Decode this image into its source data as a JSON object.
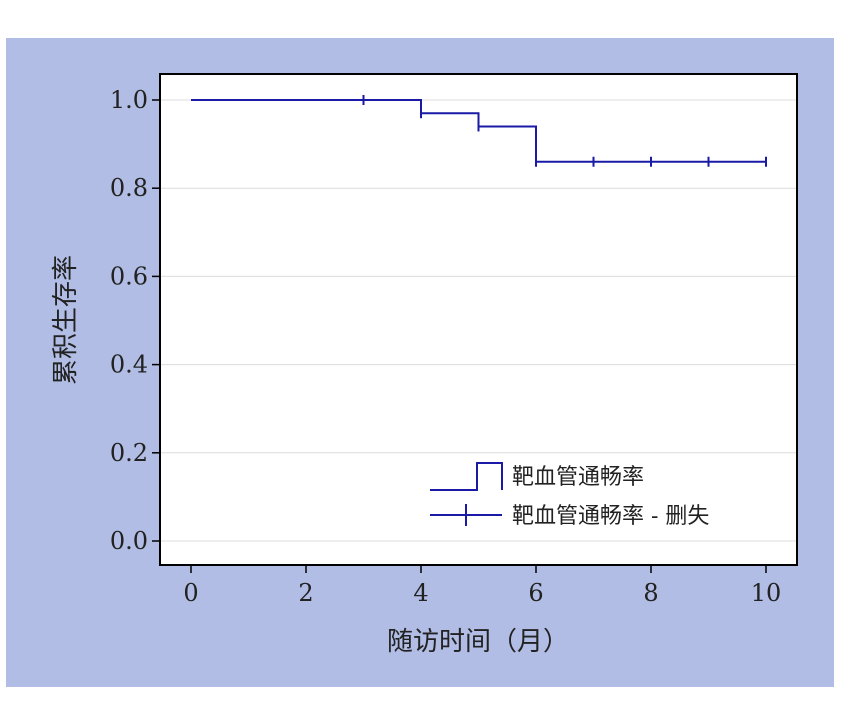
{
  "chart_data": {
    "type": "line",
    "title": "",
    "xlabel": "随访时间（月）",
    "ylabel": "累积生存率",
    "xlim": [
      0,
      10
    ],
    "ylim": [
      0,
      1.0
    ],
    "x_ticks": [
      "0",
      "2",
      "4",
      "6",
      "8",
      "10"
    ],
    "y_ticks": [
      "0.0",
      "0.2",
      "0.4",
      "0.6",
      "0.8",
      "1.0"
    ],
    "grid": "horizontal",
    "legend_position": "bottom-right",
    "series": [
      {
        "name": "靶血管通畅率",
        "style": "step",
        "color": "#1a1aa6",
        "x": [
          0,
          4,
          5,
          6,
          10
        ],
        "y": [
          1.0,
          0.97,
          0.94,
          0.86,
          0.86
        ]
      },
      {
        "name": "靶血管通畅率 - 删失",
        "style": "censor-marks",
        "color": "#1a1aa6",
        "x": [
          3,
          4,
          5,
          6,
          7,
          8,
          9,
          10
        ],
        "y": [
          1.0,
          0.97,
          0.94,
          0.86,
          0.86,
          0.86,
          0.86,
          0.86
        ]
      }
    ]
  }
}
